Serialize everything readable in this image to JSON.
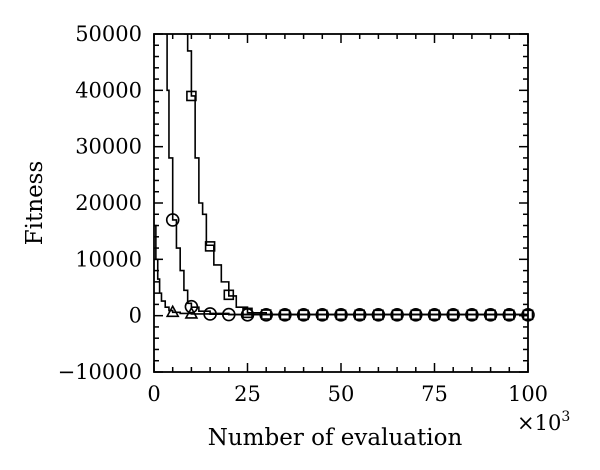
{
  "chart_data": {
    "type": "line",
    "xlabel": "Number of evaluation",
    "ylabel": "Fitness",
    "x_multiplier": "×10",
    "x_multiplier_exp": "3",
    "xlim": [
      0,
      100
    ],
    "ylim": [
      -10000,
      50000
    ],
    "xticks": [
      0,
      25,
      50,
      75,
      100
    ],
    "yticks": [
      -10000,
      0,
      10000,
      20000,
      30000,
      40000,
      50000
    ],
    "x_minor_step": 5,
    "y_minor_step": 2000,
    "grid": false,
    "legend": "none",
    "series": [
      {
        "marker": "triangle",
        "points": [
          [
            0,
            16000
          ],
          [
            0.5,
            10000
          ],
          [
            1,
            6500
          ],
          [
            1.5,
            4000
          ],
          [
            2,
            2600
          ],
          [
            3,
            1500
          ],
          [
            4,
            900
          ],
          [
            5,
            600
          ],
          [
            7,
            400
          ],
          [
            10,
            300
          ],
          [
            15,
            250
          ],
          [
            20,
            200
          ],
          [
            100,
            150
          ]
        ],
        "marker_points": [
          [
            5,
            600
          ],
          [
            10,
            300
          ]
        ]
      },
      {
        "marker": "circle",
        "points": [
          [
            3,
            50000
          ],
          [
            3.5,
            40000
          ],
          [
            4,
            28000
          ],
          [
            5,
            17000
          ],
          [
            6,
            12000
          ],
          [
            7,
            8000
          ],
          [
            8,
            4500
          ],
          [
            9,
            2200
          ],
          [
            10,
            1500
          ],
          [
            12,
            800
          ],
          [
            15,
            400
          ],
          [
            20,
            200
          ],
          [
            100,
            150
          ]
        ],
        "marker_points": [
          [
            5,
            17000
          ],
          [
            10,
            1600
          ],
          [
            15,
            300
          ],
          [
            20,
            200
          ],
          [
            25,
            150
          ],
          [
            30,
            150
          ],
          [
            35,
            150
          ],
          [
            40,
            150
          ],
          [
            45,
            150
          ],
          [
            50,
            150
          ],
          [
            55,
            150
          ],
          [
            60,
            150
          ],
          [
            65,
            150
          ],
          [
            70,
            150
          ],
          [
            75,
            150
          ],
          [
            80,
            150
          ],
          [
            85,
            150
          ],
          [
            90,
            150
          ],
          [
            95,
            150
          ],
          [
            100,
            150
          ]
        ]
      },
      {
        "marker": "square",
        "points": [
          [
            8,
            50000
          ],
          [
            9,
            47000
          ],
          [
            10,
            39000
          ],
          [
            11,
            28000
          ],
          [
            12,
            20000
          ],
          [
            13,
            18000
          ],
          [
            14,
            12500
          ],
          [
            16,
            9000
          ],
          [
            18,
            6000
          ],
          [
            20,
            3500
          ],
          [
            22,
            1500
          ],
          [
            25,
            500
          ],
          [
            30,
            200
          ],
          [
            100,
            150
          ]
        ],
        "marker_points": [
          [
            10,
            39000
          ],
          [
            15,
            12300
          ],
          [
            20,
            3700
          ],
          [
            25,
            500
          ],
          [
            30,
            200
          ],
          [
            35,
            150
          ],
          [
            40,
            150
          ],
          [
            45,
            150
          ],
          [
            50,
            150
          ],
          [
            55,
            150
          ],
          [
            60,
            150
          ],
          [
            65,
            150
          ],
          [
            70,
            150
          ],
          [
            75,
            150
          ],
          [
            80,
            150
          ],
          [
            85,
            150
          ],
          [
            90,
            150
          ],
          [
            95,
            150
          ],
          [
            100,
            150
          ]
        ]
      }
    ]
  }
}
